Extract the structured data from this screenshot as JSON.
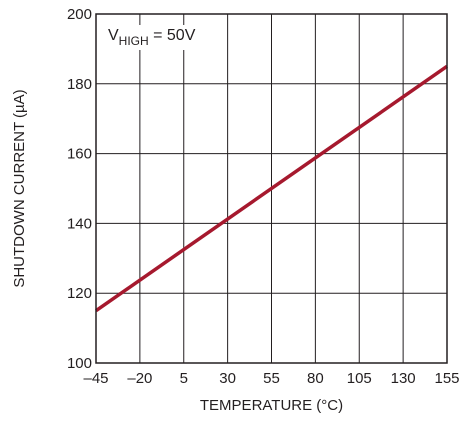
{
  "chart_data": {
    "type": "line",
    "xlabel": "TEMPERATURE (°C)",
    "ylabel": "SHUTDOWN CURRENT (µA)",
    "xlim": [
      -45,
      155
    ],
    "ylim": [
      100,
      200
    ],
    "x_ticks": [
      -45,
      -20,
      5,
      30,
      55,
      80,
      105,
      130,
      155
    ],
    "x_tick_labels": [
      "–45",
      "–20",
      "5",
      "30",
      "55",
      "80",
      "105",
      "130",
      "155"
    ],
    "y_ticks": [
      100,
      120,
      140,
      160,
      180,
      200
    ],
    "y_tick_labels": [
      "100",
      "120",
      "140",
      "160",
      "180",
      "200"
    ],
    "grid": true,
    "annotation": {
      "main": "V",
      "subscript": "HIGH",
      "suffix": " = 50V"
    },
    "series": [
      {
        "color": "#a6192e",
        "x": [
          -45,
          155
        ],
        "y": [
          115,
          185
        ]
      }
    ]
  }
}
